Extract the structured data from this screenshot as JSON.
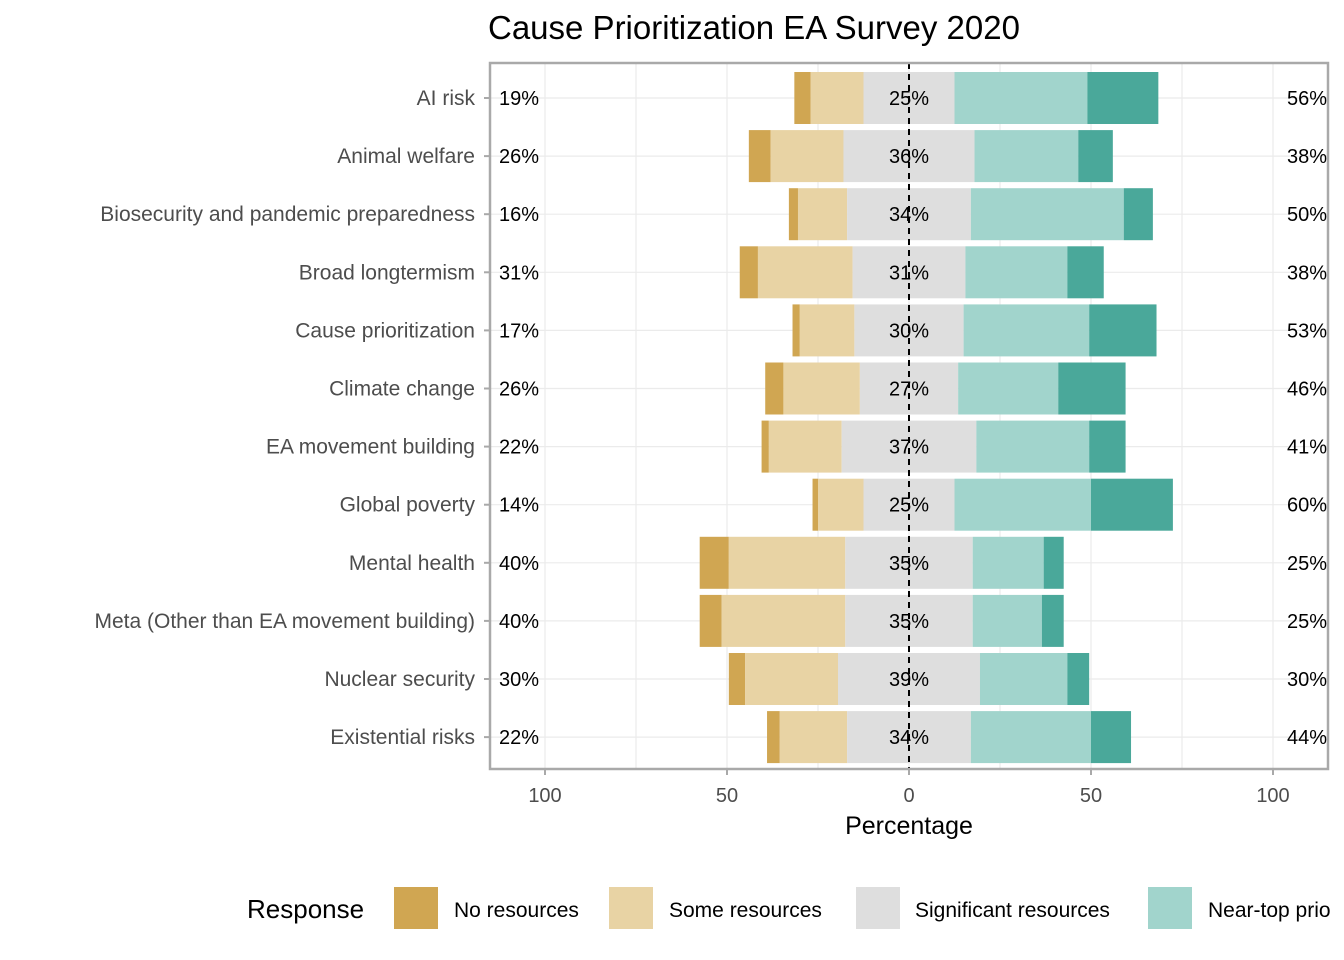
{
  "chart_data": {
    "type": "bar",
    "subtype": "diverging-stacked",
    "title": "Cause Prioritization EA Survey 2020",
    "xlabel": "Percentage",
    "ylabel": "",
    "xlim": [
      -100,
      100
    ],
    "x_ticks": [
      -100,
      -50,
      0,
      50,
      100
    ],
    "x_tick_labels": [
      "100",
      "50",
      "0",
      "50",
      "100"
    ],
    "grid": true,
    "legend_position": "bottom",
    "legend_title": "Response",
    "categories": [
      "AI risk",
      "Animal welfare",
      "Biosecurity and pandemic preparedness",
      "Broad longtermism",
      "Cause prioritization",
      "Climate change",
      "EA movement building",
      "Global poverty",
      "Mental health",
      "Meta (Other than EA movement building)",
      "Nuclear security",
      "Existential risks"
    ],
    "series": [
      {
        "name": "No resources",
        "color": "#d0a652",
        "values": [
          4.5,
          6,
          2.5,
          5,
          2,
          5,
          2,
          1.5,
          8,
          6,
          4.5,
          3.5
        ]
      },
      {
        "name": "Some resources",
        "color": "#e8d3a4",
        "values": [
          14.5,
          20,
          13.5,
          26,
          15,
          21,
          20,
          12.5,
          32,
          34,
          25.5,
          18.5
        ]
      },
      {
        "name": "Significant resources",
        "color": "#dedede",
        "values": [
          25,
          36,
          34,
          31,
          30,
          27,
          37,
          25,
          35,
          35,
          39,
          34
        ]
      },
      {
        "name": "Near-top priority",
        "color": "#a1d4cc",
        "values": [
          36.5,
          28.5,
          42,
          28,
          34.5,
          27.5,
          31,
          37.5,
          19.5,
          19,
          24,
          33
        ]
      },
      {
        "name": "",
        "color": "#4aa89a",
        "values": [
          19.5,
          9.5,
          8,
          10,
          18.5,
          18.5,
          10,
          22.5,
          5.5,
          6,
          6,
          11
        ]
      }
    ],
    "left_labels": [
      "19%",
      "26%",
      "16%",
      "31%",
      "17%",
      "26%",
      "22%",
      "14%",
      "40%",
      "40%",
      "30%",
      "22%"
    ],
    "center_labels": [
      "25%",
      "36%",
      "34%",
      "31%",
      "30%",
      "27%",
      "37%",
      "25%",
      "35%",
      "35%",
      "39%",
      "34%"
    ],
    "right_labels": [
      "56%",
      "38%",
      "50%",
      "38%",
      "53%",
      "46%",
      "41%",
      "60%",
      "25%",
      "25%",
      "30%",
      "44%"
    ],
    "legend_labels": [
      "No resources",
      "Some resources",
      "Significant resources",
      "Near-top prio"
    ]
  }
}
